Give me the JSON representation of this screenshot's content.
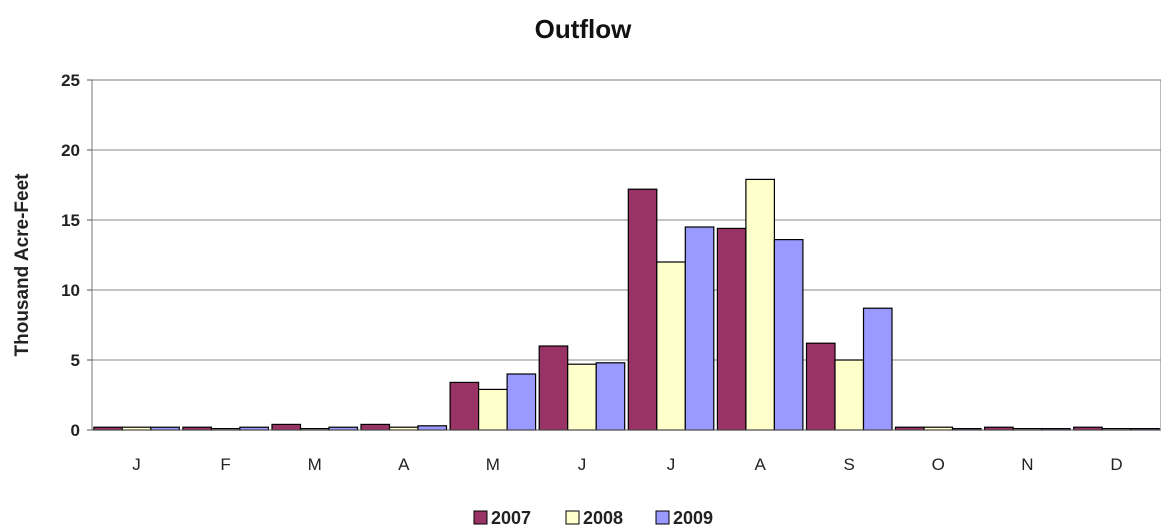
{
  "chart_data": {
    "type": "bar",
    "title": "Outflow",
    "xlabel": "",
    "ylabel": "Thousand Acre-Feet",
    "categories": [
      "J",
      "F",
      "M",
      "A",
      "M",
      "J",
      "J",
      "A",
      "S",
      "O",
      "N",
      "D"
    ],
    "ylim": [
      0,
      25
    ],
    "yticks": [
      "0",
      "5",
      "10",
      "15",
      "20",
      "25"
    ],
    "grid": "horizontal",
    "legend_position": "bottom",
    "series": [
      {
        "name": "2007",
        "color": "#993366",
        "values": [
          0.2,
          0.2,
          0.4,
          0.4,
          3.4,
          6.0,
          17.2,
          14.4,
          6.2,
          0.2,
          0.2,
          0.2
        ]
      },
      {
        "name": "2008",
        "color": "#FFFFCC",
        "values": [
          0.2,
          0.1,
          0.1,
          0.2,
          2.9,
          4.7,
          12.0,
          17.9,
          5.0,
          0.2,
          0.1,
          0.1
        ]
      },
      {
        "name": "2009",
        "color": "#9999FF",
        "values": [
          0.2,
          0.2,
          0.2,
          0.3,
          4.0,
          4.8,
          14.5,
          13.6,
          8.7,
          0.1,
          0.1,
          0.1
        ]
      }
    ]
  }
}
